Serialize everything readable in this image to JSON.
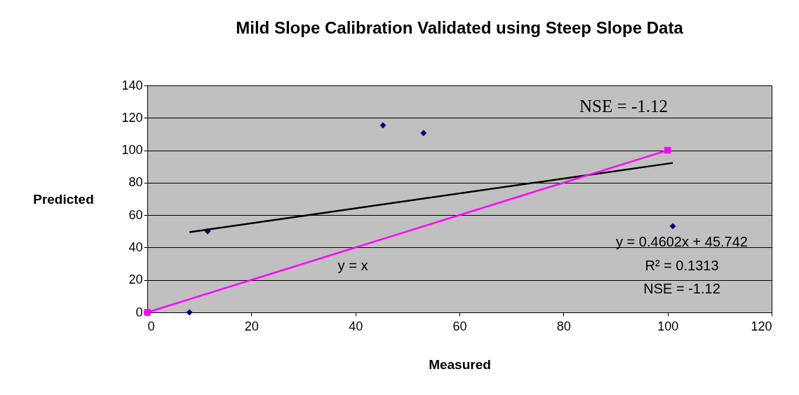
{
  "chart_data": {
    "type": "scatter",
    "title": "Mild Slope Calibration Validated using Steep Slope Data",
    "xlabel": "Measured",
    "ylabel": "Predicted",
    "xlim": [
      0,
      120
    ],
    "xticks": [
      0,
      20,
      40,
      60,
      80,
      100,
      120
    ],
    "ylim": [
      0,
      140
    ],
    "yticks": [
      0,
      20,
      40,
      60,
      80,
      100,
      120,
      140
    ],
    "grid": "y",
    "series": [
      {
        "color": "#000080",
        "marker": "diamond",
        "x": [
          8.1,
          11.6,
          45.3,
          53.1,
          101
        ],
        "values": [
          0,
          50,
          115.4,
          110.6,
          53.2
        ]
      },
      {
        "type": "line",
        "color": "#000000",
        "marker": "none",
        "x": [
          8.1,
          101
        ],
        "values": [
          49.5,
          92.2
        ]
      },
      {
        "type": "line",
        "color": "#ff00ff",
        "marker": "square",
        "x": [
          0,
          100
        ],
        "values": [
          0,
          100
        ]
      }
    ],
    "annotations": [
      "NSE = -1.12",
      "y = x",
      "y = 0.4602x + 45.742",
      "R² = 0.1313",
      "NSE = -1.12"
    ]
  }
}
